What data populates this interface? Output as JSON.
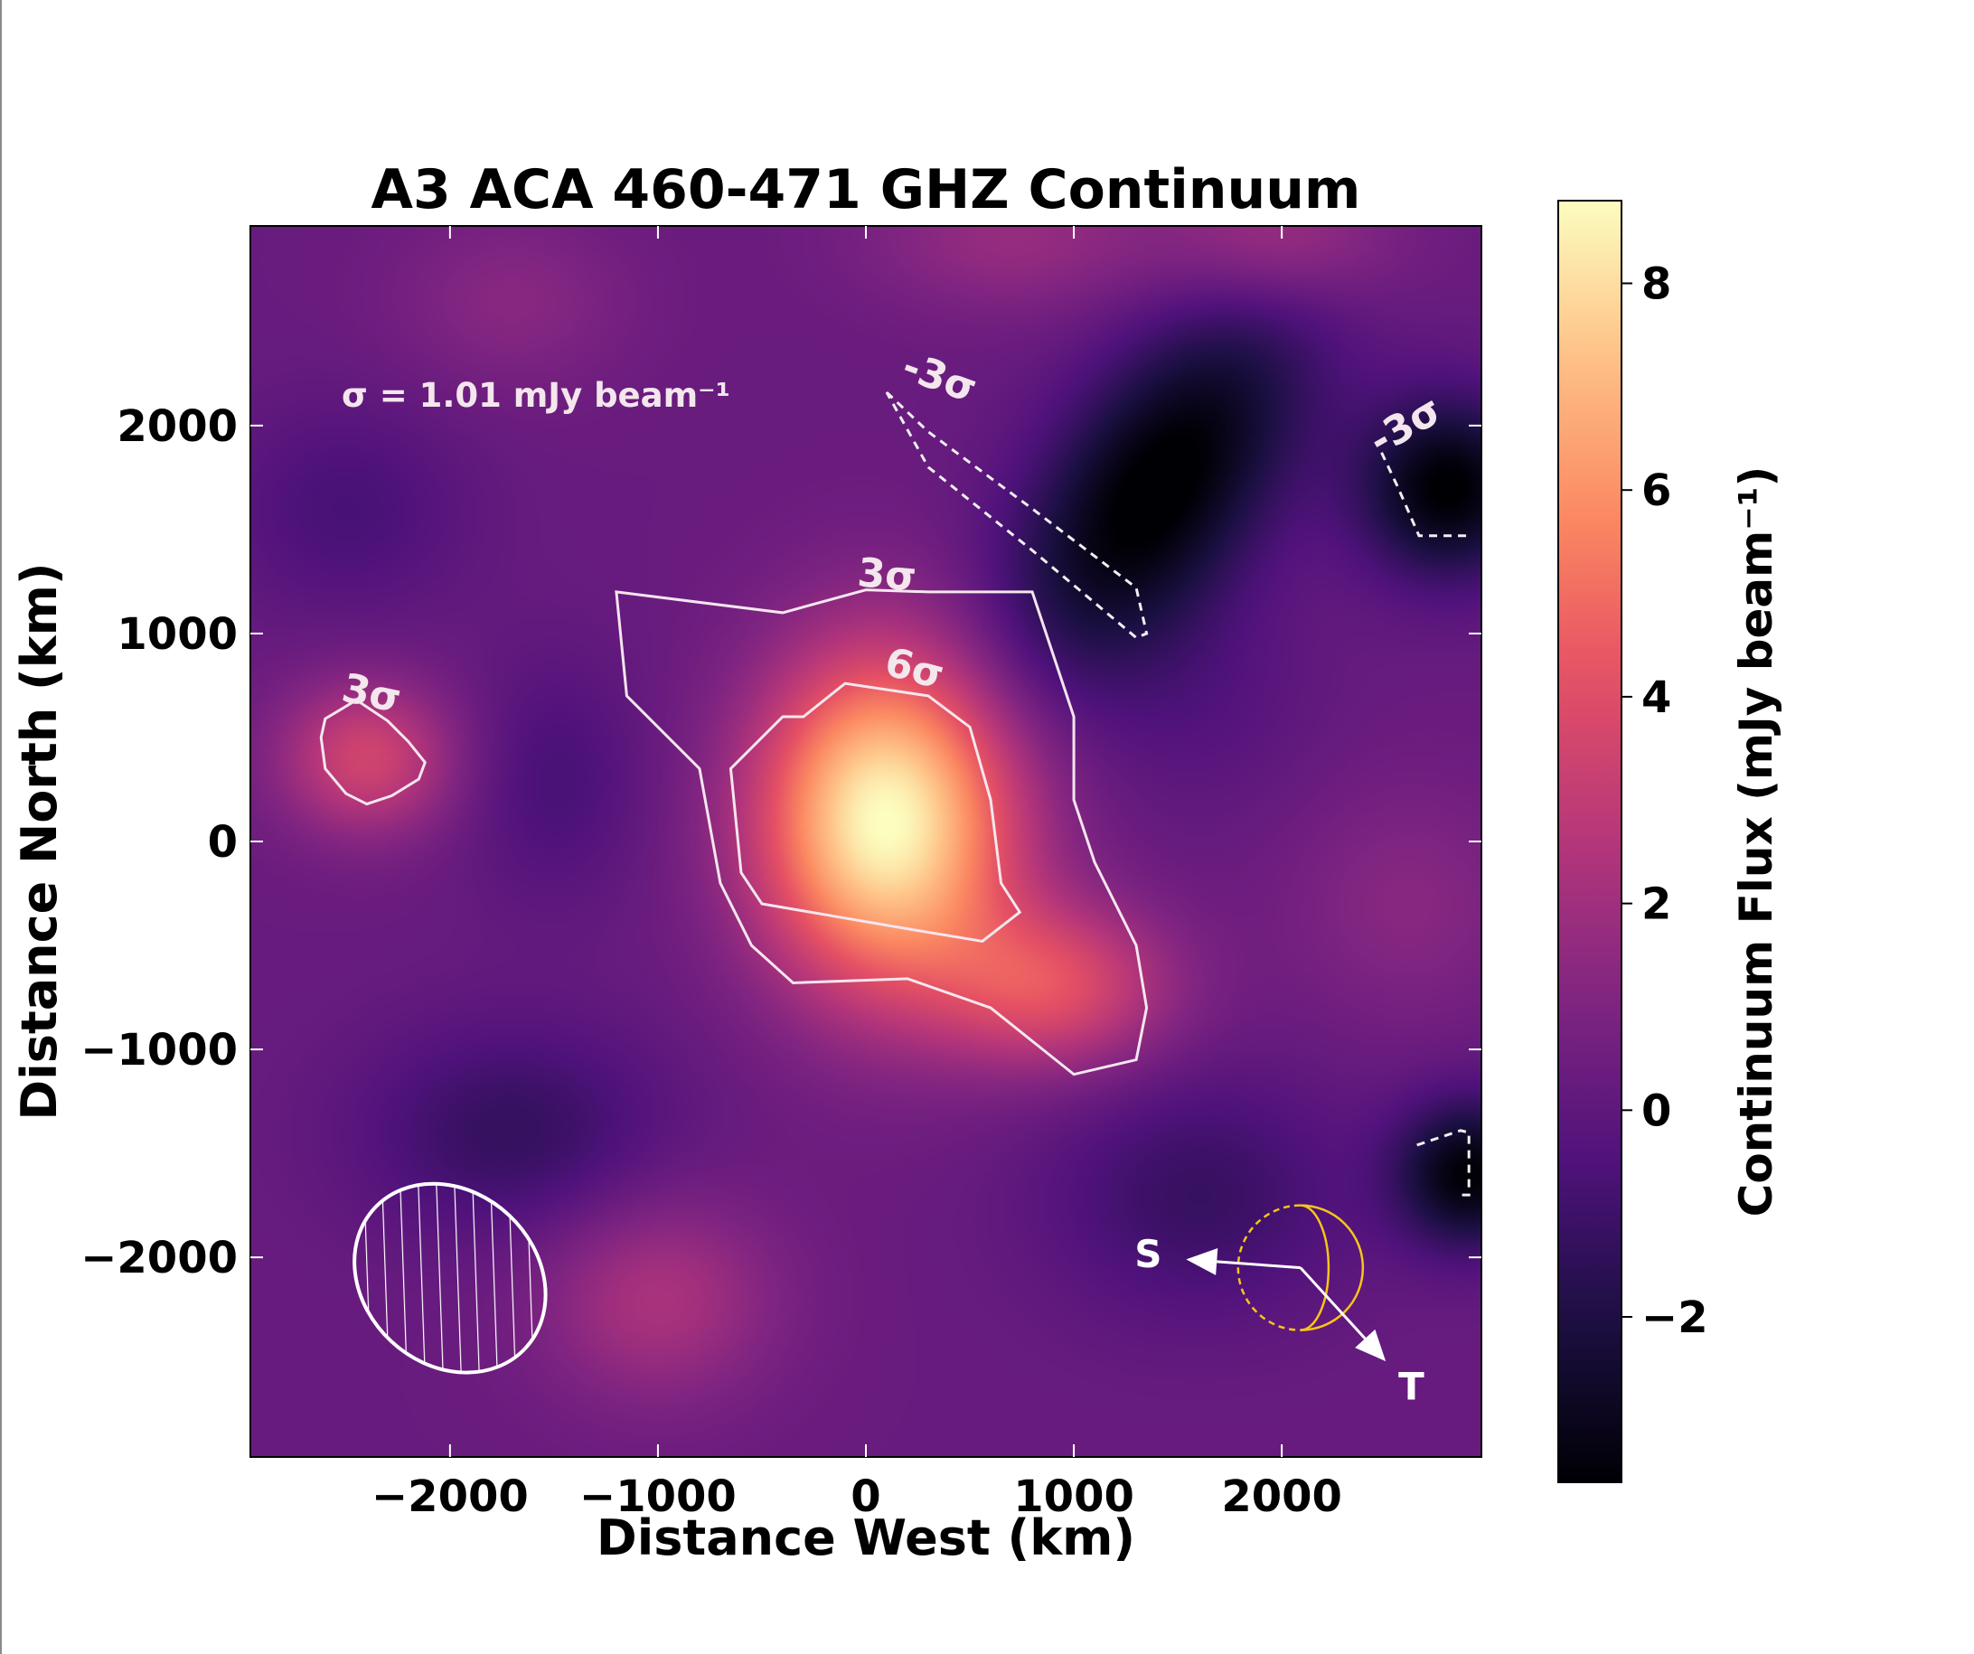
{
  "chart_data": {
    "type": "heatmap",
    "title": "A3 ACA 460-471 GHZ Continuum",
    "xlabel": "Distance West (km)",
    "ylabel": "Distance North (km)",
    "xlim": [
      -2960,
      2960
    ],
    "ylim": [
      -2960,
      2960
    ],
    "x_ticks": [
      -2000,
      -1000,
      0,
      1000,
      2000
    ],
    "x_tick_labels": [
      "−2000",
      "−1000",
      "0",
      "1000",
      "2000"
    ],
    "y_ticks": [
      -2000,
      -1000,
      0,
      1000,
      2000
    ],
    "y_tick_labels": [
      "−2000",
      "−1000",
      "0",
      "1000",
      "2000"
    ],
    "colormap": "magma",
    "colorbar": {
      "label": "Continuum Flux (mJy beam⁻¹)",
      "range": [
        -3.6,
        8.8
      ],
      "ticks": [
        -2,
        0,
        2,
        4,
        6,
        8
      ],
      "tick_labels": [
        "−2",
        "0",
        "2",
        "4",
        "6",
        "8"
      ]
    },
    "sigma_label": "σ = 1.01 mJy beam⁻¹",
    "peak": {
      "x": 100,
      "y": 100,
      "value": 8.7
    },
    "emission_blobs": [
      {
        "x": 100,
        "y": 100,
        "sx": 430,
        "sy": 560,
        "amp": 8.6
      },
      {
        "x": 900,
        "y": -700,
        "sx": 400,
        "sy": 280,
        "amp": 3.6
      },
      {
        "x": -2400,
        "y": 400,
        "sx": 300,
        "sy": 260,
        "amp": 3.2
      },
      {
        "x": -1000,
        "y": -2200,
        "sx": 400,
        "sy": 350,
        "amp": 2.0
      },
      {
        "x": 700,
        "y": 2900,
        "sx": 500,
        "sy": 250,
        "amp": 1.4
      },
      {
        "x": 2000,
        "y": 2900,
        "sx": 400,
        "sy": 250,
        "amp": 1.8
      },
      {
        "x": -1700,
        "y": 2600,
        "sx": 400,
        "sy": 300,
        "amp": 1.0
      },
      {
        "x": 2600,
        "y": -300,
        "sx": 400,
        "sy": 400,
        "amp": 1.0
      },
      {
        "x": 1400,
        "y": 1700,
        "sx": 350,
        "sy": 700,
        "rot": -35,
        "amp": -4.2
      },
      {
        "x": 2800,
        "y": 1700,
        "sx": 300,
        "sy": 300,
        "amp": -4.0
      },
      {
        "x": 2900,
        "y": -1600,
        "sx": 250,
        "sy": 250,
        "amp": -3.8
      },
      {
        "x": -1700,
        "y": -1400,
        "sx": 500,
        "sy": 350,
        "amp": -1.6
      },
      {
        "x": -2500,
        "y": 1600,
        "sx": 400,
        "sy": 350,
        "amp": -1.0
      },
      {
        "x": 1600,
        "y": -1700,
        "sx": 500,
        "sy": 400,
        "amp": -1.5
      },
      {
        "x": -1500,
        "y": 300,
        "sx": 300,
        "sy": 400,
        "amp": -1.0
      },
      {
        "x": 1600,
        "y": 700,
        "sx": 400,
        "sy": 400,
        "amp": -0.6
      }
    ],
    "background_level": 0.3,
    "contours": [
      {
        "level_label": "3σ",
        "style": "solid",
        "points": [
          [
            -1200,
            1200
          ],
          [
            -400,
            1100
          ],
          [
            0,
            1210
          ],
          [
            300,
            1200
          ],
          [
            800,
            1200
          ],
          [
            1000,
            600
          ],
          [
            1000,
            200
          ],
          [
            1100,
            -100
          ],
          [
            1300,
            -500
          ],
          [
            1350,
            -800
          ],
          [
            1300,
            -1050
          ],
          [
            1000,
            -1120
          ],
          [
            600,
            -800
          ],
          [
            200,
            -660
          ],
          [
            -350,
            -680
          ],
          [
            -550,
            -500
          ],
          [
            -700,
            -200
          ],
          [
            -800,
            350
          ],
          [
            -1150,
            700
          ]
        ]
      },
      {
        "level_label": "6σ",
        "style": "solid",
        "points": [
          [
            -300,
            600
          ],
          [
            -100,
            760
          ],
          [
            300,
            700
          ],
          [
            500,
            550
          ],
          [
            600,
            200
          ],
          [
            650,
            -200
          ],
          [
            740,
            -340
          ],
          [
            560,
            -480
          ],
          [
            200,
            -420
          ],
          [
            -500,
            -300
          ],
          [
            -600,
            -150
          ],
          [
            -650,
            350
          ],
          [
            -400,
            600
          ]
        ]
      },
      {
        "level_label": "3σ",
        "style": "solid",
        "points": [
          [
            -2600,
            590
          ],
          [
            -2620,
            500
          ],
          [
            -2600,
            350
          ],
          [
            -2500,
            230
          ],
          [
            -2400,
            180
          ],
          [
            -2280,
            220
          ],
          [
            -2150,
            300
          ],
          [
            -2120,
            380
          ],
          [
            -2200,
            480
          ],
          [
            -2300,
            580
          ],
          [
            -2450,
            680
          ]
        ]
      },
      {
        "level_label": "-3σ",
        "style": "dashed",
        "points": [
          [
            100,
            2160
          ],
          [
            300,
            1970
          ],
          [
            800,
            1600
          ],
          [
            1300,
            1220
          ],
          [
            1350,
            1000
          ],
          [
            1300,
            980
          ],
          [
            800,
            1400
          ],
          [
            300,
            1800
          ]
        ]
      },
      {
        "level_label": "-3σ",
        "style": "dashed",
        "points": [
          [
            2480,
            1870
          ],
          [
            2560,
            1700
          ],
          [
            2660,
            1470
          ],
          [
            2900,
            1470
          ]
        ]
      },
      {
        "level_label": "-3σ",
        "style": "dashed",
        "points": [
          [
            2650,
            -1460
          ],
          [
            2860,
            -1390
          ],
          [
            2900,
            -1400
          ],
          [
            2900,
            -1700
          ],
          [
            2850,
            -1700
          ]
        ]
      }
    ],
    "beam": {
      "x": -2000,
      "y": -2100,
      "major_km": 990,
      "minor_km": 830,
      "pa_deg": -47
    },
    "moon_symbol": {
      "x": 2090,
      "y": -2050,
      "radius_km": 300
    },
    "direction_arrows": [
      {
        "label": "S",
        "from": [
          2090,
          -2050
        ],
        "to": [
          1540,
          -2010
        ]
      },
      {
        "label": "T",
        "from": [
          2090,
          -2050
        ],
        "to": [
          2500,
          -2500
        ]
      }
    ],
    "legend": "none",
    "grid": false
  }
}
